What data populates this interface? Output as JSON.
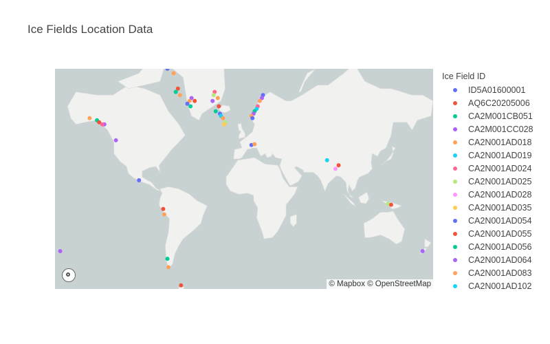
{
  "chart_title": "Ice Fields Location Data",
  "legend_title": "Ice Field ID",
  "attribution": "© Mapbox © OpenStreetMap",
  "chart_data": {
    "type": "scatter",
    "map": "world scatter map",
    "series": [
      {
        "name": "ID5A01600001",
        "color": "#636efa"
      },
      {
        "name": "AQ6C20205006",
        "color": "#ef553b"
      },
      {
        "name": "CA2M001CB051",
        "color": "#00cc96"
      },
      {
        "name": "CA2M001CC028",
        "color": "#ab63fa"
      },
      {
        "name": "CA2N001AD018",
        "color": "#ffa15a"
      },
      {
        "name": "CA2N001AD019",
        "color": "#19d3f3"
      },
      {
        "name": "CA2N001AD024",
        "color": "#ff6692"
      },
      {
        "name": "CA2N001AD025",
        "color": "#b6e880"
      },
      {
        "name": "CA2N001AD028",
        "color": "#ff97ff"
      },
      {
        "name": "CA2N001AD035",
        "color": "#fecb52"
      },
      {
        "name": "CA2N001AD054",
        "color": "#636efa"
      },
      {
        "name": "CA2N001AD055",
        "color": "#ef553b"
      },
      {
        "name": "CA2N001AD056",
        "color": "#00cc96"
      },
      {
        "name": "CA2N001AD064",
        "color": "#ab63fa"
      },
      {
        "name": "CA2N001AD083",
        "color": "#ffa15a"
      },
      {
        "name": "CA2N001AD102",
        "color": "#19d3f3"
      }
    ],
    "points": [
      {
        "lon": -66,
        "lat": 80,
        "c": "#ef553b"
      },
      {
        "lon": -70,
        "lat": 79,
        "c": "#ab63fa"
      },
      {
        "lon": -73,
        "lat": 77,
        "c": "#636efa"
      },
      {
        "lon": -67,
        "lat": 76,
        "c": "#ffa15a"
      },
      {
        "lon": -63,
        "lat": 72,
        "c": "#ef553b"
      },
      {
        "lon": -65,
        "lat": 71,
        "c": "#00cc96"
      },
      {
        "lon": -61,
        "lat": 70,
        "c": "#ffa15a"
      },
      {
        "lon": -50,
        "lat": 69,
        "c": "#ab63fa"
      },
      {
        "lon": -47,
        "lat": 68,
        "c": "#ef553b"
      },
      {
        "lon": -52,
        "lat": 68,
        "c": "#ffa15a"
      },
      {
        "lon": -54,
        "lat": 67,
        "c": "#636efa"
      },
      {
        "lon": -51,
        "lat": 66,
        "c": "#00cc96"
      },
      {
        "lon": -28,
        "lat": 71,
        "c": "#ff6692"
      },
      {
        "lon": -29,
        "lat": 70,
        "c": "#b6e880"
      },
      {
        "lon": -25,
        "lat": 69,
        "c": "#ffa15a"
      },
      {
        "lon": -30,
        "lat": 68,
        "c": "#ab63fa"
      },
      {
        "lon": -24,
        "lat": 66,
        "c": "#ef553b"
      },
      {
        "lon": -27,
        "lat": 64,
        "c": "#00cc96"
      },
      {
        "lon": -23,
        "lat": 63,
        "c": "#636efa"
      },
      {
        "lon": -22,
        "lat": 62,
        "c": "#19d3f3"
      },
      {
        "lon": -20,
        "lat": 61,
        "c": "#ffa15a"
      },
      {
        "lon": -18,
        "lat": 59,
        "c": "#b6e880"
      },
      {
        "lon": -19,
        "lat": 58,
        "c": "#fecb52"
      },
      {
        "lon": 14,
        "lat": 79,
        "c": "#fecb52"
      },
      {
        "lon": 19,
        "lat": 80,
        "c": "#636efa"
      },
      {
        "lon": 18,
        "lat": 70,
        "c": "#636efa"
      },
      {
        "lon": 17,
        "lat": 69,
        "c": "#ab63fa"
      },
      {
        "lon": 15,
        "lat": 68,
        "c": "#ffa15a"
      },
      {
        "lon": 13,
        "lat": 66,
        "c": "#ff6692"
      },
      {
        "lon": 12,
        "lat": 65,
        "c": "#19d3f3"
      },
      {
        "lon": 10,
        "lat": 64,
        "c": "#00cc96"
      },
      {
        "lon": 9,
        "lat": 63,
        "c": "#ab63fa"
      },
      {
        "lon": 7,
        "lat": 62,
        "c": "#ffa15a"
      },
      {
        "lon": 8,
        "lat": 61,
        "c": "#636efa"
      },
      {
        "lon": -147,
        "lat": 61,
        "c": "#ffa15a"
      },
      {
        "lon": -140,
        "lat": 60,
        "c": "#00cc96"
      },
      {
        "lon": -138,
        "lat": 59,
        "c": "#ef553b"
      },
      {
        "lon": -133,
        "lat": 58,
        "c": "#ab63fa"
      },
      {
        "lon": -135,
        "lat": 58,
        "c": "#ff6692"
      },
      {
        "lon": -122,
        "lat": 49,
        "c": "#ab63fa"
      },
      {
        "lon": 7,
        "lat": 46,
        "c": "#636efa"
      },
      {
        "lon": 10,
        "lat": 46.5,
        "c": "#ffa15a"
      },
      {
        "lon": 79,
        "lat": 35,
        "c": "#19d3f3"
      },
      {
        "lon": 90,
        "lat": 31,
        "c": "#ef553b"
      },
      {
        "lon": 87,
        "lat": 28,
        "c": "#ff97ff"
      },
      {
        "lon": -100,
        "lat": 18,
        "c": "#636efa"
      },
      {
        "lon": -77,
        "lat": -9,
        "c": "#ef553b"
      },
      {
        "lon": -76,
        "lat": -14,
        "c": "#ffa15a"
      },
      {
        "lon": 137,
        "lat": -4,
        "c": "#b6e880"
      },
      {
        "lon": 140,
        "lat": -5,
        "c": "#ef553b"
      },
      {
        "lon": -73,
        "lat": -49,
        "c": "#00cc96"
      },
      {
        "lon": -72,
        "lat": -54,
        "c": "#ffa15a"
      },
      {
        "lon": -60,
        "lat": -63,
        "c": "#ef553b"
      },
      {
        "lon": 170,
        "lat": -44,
        "c": "#ab63fa"
      },
      {
        "lon": -175,
        "lat": -44,
        "c": "#ab63fa"
      }
    ]
  }
}
